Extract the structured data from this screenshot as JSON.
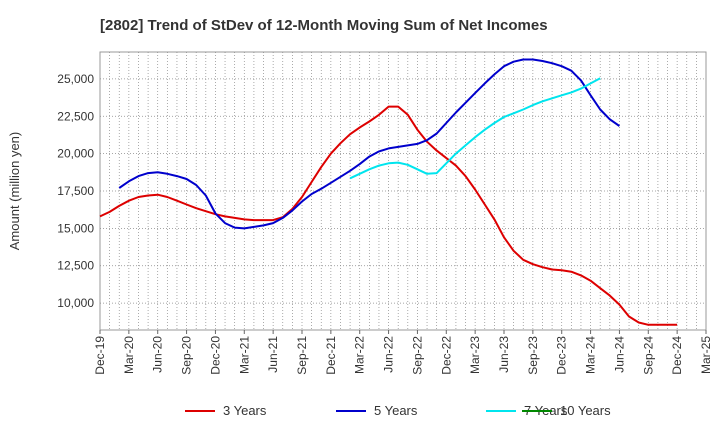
{
  "chart_data": {
    "type": "line",
    "title": "[2802]  Trend of StDev of 12-Month Moving Sum of Net Incomes",
    "ylabel": "Amount (million yen)",
    "xlabel": "",
    "ylim": [
      8200,
      26800
    ],
    "yticks": [
      10000,
      12500,
      15000,
      17500,
      20000,
      22500,
      25000
    ],
    "ytick_labels": [
      "10,000",
      "12,500",
      "15,000",
      "17,500",
      "20,000",
      "22,500",
      "25,000"
    ],
    "xtick_labels": [
      "Dec-19",
      "Mar-20",
      "Jun-20",
      "Sep-20",
      "Dec-20",
      "Mar-21",
      "Jun-21",
      "Sep-21",
      "Dec-21",
      "Mar-22",
      "Jun-22",
      "Sep-22",
      "Dec-22",
      "Mar-23",
      "Jun-23",
      "Sep-23",
      "Dec-23",
      "Mar-24",
      "Jun-24",
      "Sep-24",
      "Dec-24",
      "Mar-25"
    ],
    "grid": true,
    "legend_position": "bottom",
    "series": [
      {
        "name": "3 Years",
        "color": "#dd0000",
        "values": [
          [
            0,
            15800
          ],
          [
            1,
            16100
          ],
          [
            2,
            16500
          ],
          [
            3,
            16850
          ],
          [
            4,
            17100
          ],
          [
            5,
            17200
          ],
          [
            6,
            17250
          ],
          [
            7,
            17100
          ],
          [
            8,
            16850
          ],
          [
            9,
            16600
          ],
          [
            10,
            16350
          ],
          [
            11,
            16150
          ],
          [
            12,
            15950
          ],
          [
            13,
            15800
          ],
          [
            14,
            15700
          ],
          [
            15,
            15600
          ],
          [
            16,
            15550
          ],
          [
            17,
            15550
          ],
          [
            18,
            15550
          ],
          [
            19,
            15750
          ],
          [
            20,
            16300
          ],
          [
            21,
            17100
          ],
          [
            22,
            18100
          ],
          [
            23,
            19100
          ],
          [
            24,
            20000
          ],
          [
            25,
            20700
          ],
          [
            26,
            21300
          ],
          [
            27,
            21750
          ],
          [
            28,
            22150
          ],
          [
            29,
            22600
          ],
          [
            30,
            23150
          ],
          [
            31,
            23150
          ],
          [
            32,
            22600
          ],
          [
            33,
            21600
          ],
          [
            34,
            20800
          ],
          [
            35,
            20200
          ],
          [
            36,
            19700
          ],
          [
            37,
            19200
          ],
          [
            38,
            18500
          ],
          [
            39,
            17600
          ],
          [
            40,
            16600
          ],
          [
            41,
            15600
          ],
          [
            42,
            14400
          ],
          [
            43,
            13500
          ],
          [
            44,
            12900
          ],
          [
            45,
            12600
          ],
          [
            46,
            12400
          ],
          [
            47,
            12250
          ],
          [
            48,
            12200
          ],
          [
            49,
            12100
          ],
          [
            50,
            11850
          ],
          [
            51,
            11500
          ],
          [
            52,
            11000
          ],
          [
            53,
            10500
          ],
          [
            54,
            9900
          ],
          [
            55,
            9100
          ],
          [
            56,
            8700
          ],
          [
            57,
            8550
          ],
          [
            58,
            8550
          ],
          [
            59,
            8550
          ],
          [
            60,
            8550
          ]
        ]
      },
      {
        "name": "5 Years",
        "color": "#0000cc",
        "values": [
          [
            2,
            17700
          ],
          [
            3,
            18150
          ],
          [
            4,
            18500
          ],
          [
            5,
            18700
          ],
          [
            6,
            18750
          ],
          [
            7,
            18650
          ],
          [
            8,
            18500
          ],
          [
            9,
            18300
          ],
          [
            10,
            17900
          ],
          [
            11,
            17200
          ],
          [
            12,
            16000
          ],
          [
            13,
            15350
          ],
          [
            14,
            15050
          ],
          [
            15,
            15000
          ],
          [
            16,
            15100
          ],
          [
            17,
            15200
          ],
          [
            18,
            15350
          ],
          [
            19,
            15700
          ],
          [
            20,
            16200
          ],
          [
            21,
            16800
          ],
          [
            22,
            17300
          ],
          [
            23,
            17650
          ],
          [
            24,
            18050
          ],
          [
            25,
            18450
          ],
          [
            26,
            18850
          ],
          [
            27,
            19300
          ],
          [
            28,
            19800
          ],
          [
            29,
            20150
          ],
          [
            30,
            20350
          ],
          [
            31,
            20450
          ],
          [
            32,
            20550
          ],
          [
            33,
            20650
          ],
          [
            34,
            20900
          ],
          [
            35,
            21350
          ],
          [
            36,
            22050
          ],
          [
            37,
            22750
          ],
          [
            38,
            23400
          ],
          [
            39,
            24050
          ],
          [
            40,
            24700
          ],
          [
            41,
            25300
          ],
          [
            42,
            25850
          ],
          [
            43,
            26150
          ],
          [
            44,
            26300
          ],
          [
            45,
            26300
          ],
          [
            46,
            26200
          ],
          [
            47,
            26050
          ],
          [
            48,
            25850
          ],
          [
            49,
            25550
          ],
          [
            50,
            24900
          ],
          [
            51,
            23900
          ],
          [
            52,
            22950
          ],
          [
            53,
            22300
          ],
          [
            54,
            21850
          ]
        ]
      },
      {
        "name": "7 Years",
        "color": "#00e5ee",
        "values": [
          [
            26,
            18350
          ],
          [
            27,
            18650
          ],
          [
            28,
            18950
          ],
          [
            29,
            19200
          ],
          [
            30,
            19350
          ],
          [
            31,
            19400
          ],
          [
            32,
            19250
          ],
          [
            33,
            18950
          ],
          [
            34,
            18650
          ],
          [
            35,
            18700
          ],
          [
            36,
            19350
          ],
          [
            37,
            20000
          ],
          [
            38,
            20550
          ],
          [
            39,
            21100
          ],
          [
            40,
            21600
          ],
          [
            41,
            22050
          ],
          [
            42,
            22450
          ],
          [
            43,
            22700
          ],
          [
            44,
            22950
          ],
          [
            45,
            23250
          ],
          [
            46,
            23500
          ],
          [
            47,
            23700
          ],
          [
            48,
            23900
          ],
          [
            49,
            24100
          ],
          [
            50,
            24350
          ],
          [
            51,
            24700
          ],
          [
            52,
            25050
          ]
        ]
      },
      {
        "name": "10 Years",
        "color": "#008800",
        "values": []
      }
    ]
  }
}
